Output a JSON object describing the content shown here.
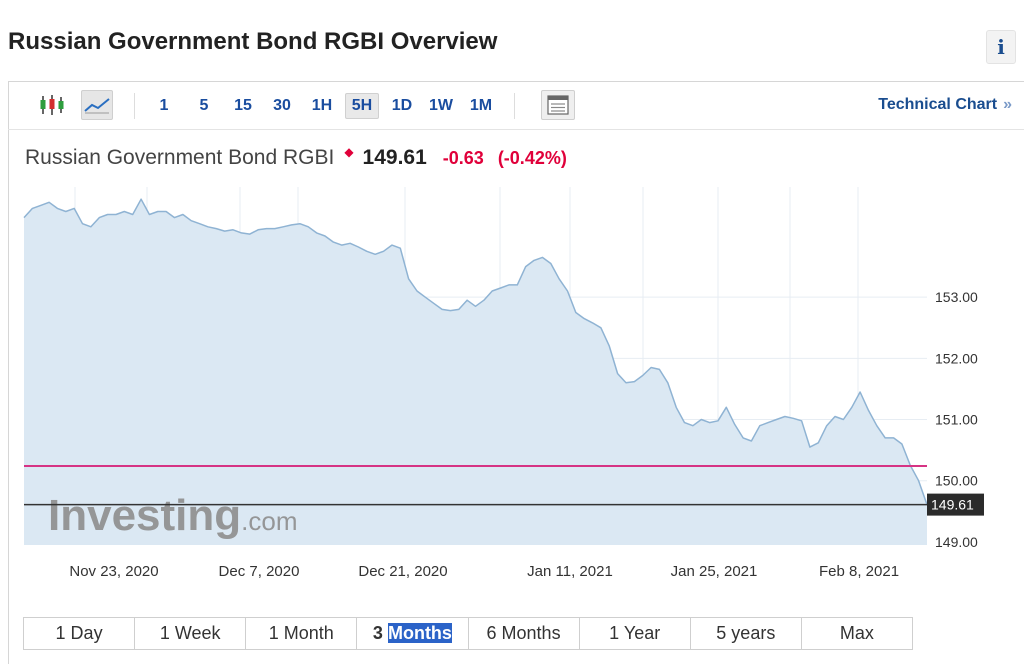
{
  "page": {
    "title": "Russian Government Bond RGBI Overview",
    "info_label": "i"
  },
  "toolbar": {
    "intervals": [
      "1",
      "5",
      "15",
      "30",
      "1H",
      "5H",
      "1D",
      "1W",
      "1M"
    ],
    "active_interval": "5H",
    "technical_link": "Technical Chart",
    "technical_link_arrows": "»"
  },
  "quote": {
    "name": "Russian Government Bond RGBI",
    "price": "149.61",
    "change": "-0.63",
    "change_pct": "(-0.42%)",
    "direction": "down",
    "down_color": "#e0003a"
  },
  "watermark": {
    "brand": "Investing",
    "suffix": ".com"
  },
  "ranges": {
    "items": [
      "1 Day",
      "1 Week",
      "1 Month",
      "3 Months",
      "6 Months",
      "1 Year",
      "5 years",
      "Max"
    ],
    "active_index": 3,
    "active_prefix": "3",
    "active_selected": "Months"
  },
  "chart_data": {
    "type": "area",
    "x_ticks": [
      "Nov 23, 2020",
      "Dec 7, 2020",
      "Dec 21, 2020",
      "Jan 11, 2021",
      "Jan 25, 2021",
      "Feb 8, 2021"
    ],
    "y_ticks": [
      149.0,
      150.0,
      151.0,
      152.0,
      153.0
    ],
    "y_tick_labels": [
      "149.00",
      "150.00",
      "151.00",
      "152.00",
      "153.00"
    ],
    "ylim": [
      148.95,
      154.8
    ],
    "grid": true,
    "reference_line": {
      "value": 150.24,
      "color": "#d63384"
    },
    "last_value": 149.61,
    "last_value_label": "149.61",
    "series": [
      {
        "values": [
          154.3,
          154.45,
          154.5,
          154.55,
          154.45,
          154.4,
          154.45,
          154.2,
          154.15,
          154.3,
          154.35,
          154.35,
          154.4,
          154.35,
          154.6,
          154.35,
          154.4,
          154.4,
          154.3,
          154.35,
          154.25,
          154.2,
          154.15,
          154.12,
          154.08,
          154.1,
          154.05,
          154.03,
          154.1,
          154.12,
          154.12,
          154.15,
          154.18,
          154.2,
          154.15,
          154.05,
          154.0,
          153.9,
          153.85,
          153.88,
          153.82,
          153.75,
          153.7,
          153.75,
          153.85,
          153.8,
          153.3,
          153.1,
          153.0,
          152.9,
          152.8,
          152.78,
          152.8,
          152.95,
          152.85,
          152.95,
          153.1,
          153.15,
          153.2,
          153.2,
          153.5,
          153.6,
          153.65,
          153.55,
          153.3,
          153.1,
          152.75,
          152.65,
          152.58,
          152.5,
          152.2,
          151.75,
          151.6,
          151.62,
          151.72,
          151.85,
          151.82,
          151.6,
          151.2,
          150.95,
          150.9,
          151.0,
          150.95,
          150.98,
          151.2,
          150.92,
          150.7,
          150.65,
          150.9,
          150.95,
          151.0,
          151.05,
          151.02,
          150.98,
          150.55,
          150.62,
          150.9,
          151.05,
          151.0,
          151.2,
          151.45,
          151.15,
          150.9,
          150.7,
          150.7,
          150.6,
          150.25,
          150.0,
          149.61
        ]
      }
    ]
  }
}
